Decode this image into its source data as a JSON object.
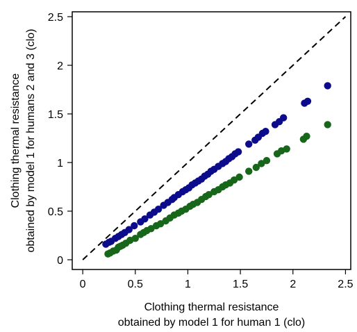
{
  "chart_data": {
    "type": "scatter",
    "xlabel": [
      "Clothing thermal resistance",
      "obtained by model 1 for human 1 (clo)"
    ],
    "ylabel": [
      "Clothing thermal resistance",
      "obtained by model 1 for humans 2 and 3 (clo)"
    ],
    "xlim": [
      -0.1,
      2.55
    ],
    "ylim": [
      -0.1,
      2.55
    ],
    "xticks": [
      "0",
      "0.5",
      "1",
      "1.5",
      "2",
      "2.5"
    ],
    "yticks": [
      "0",
      "0.5",
      "1",
      "1.5",
      "2",
      "2.5"
    ],
    "tick_values": [
      0,
      0.5,
      1,
      1.5,
      2,
      2.5
    ],
    "reference_line": {
      "style": "dashed",
      "color": "#000000",
      "from": [
        0,
        0
      ],
      "to": [
        2.5,
        2.5
      ]
    },
    "grid": false,
    "series": [
      {
        "color": "#0b0b8c",
        "points": [
          [
            0.22,
            0.16
          ],
          [
            0.25,
            0.18
          ],
          [
            0.27,
            0.19
          ],
          [
            0.31,
            0.22
          ],
          [
            0.34,
            0.24
          ],
          [
            0.37,
            0.26
          ],
          [
            0.4,
            0.28
          ],
          [
            0.44,
            0.31
          ],
          [
            0.49,
            0.35
          ],
          [
            0.55,
            0.39
          ],
          [
            0.59,
            0.42
          ],
          [
            0.64,
            0.46
          ],
          [
            0.68,
            0.49
          ],
          [
            0.72,
            0.52
          ],
          [
            0.77,
            0.56
          ],
          [
            0.81,
            0.59
          ],
          [
            0.85,
            0.62
          ],
          [
            0.87,
            0.64
          ],
          [
            0.91,
            0.67
          ],
          [
            0.95,
            0.7
          ],
          [
            0.98,
            0.72
          ],
          [
            1.01,
            0.74
          ],
          [
            1.04,
            0.77
          ],
          [
            1.07,
            0.79
          ],
          [
            1.1,
            0.81
          ],
          [
            1.13,
            0.83
          ],
          [
            1.16,
            0.86
          ],
          [
            1.19,
            0.88
          ],
          [
            1.22,
            0.91
          ],
          [
            1.25,
            0.93
          ],
          [
            1.29,
            0.96
          ],
          [
            1.33,
            0.99
          ],
          [
            1.36,
            1.01
          ],
          [
            1.39,
            1.04
          ],
          [
            1.42,
            1.06
          ],
          [
            1.45,
            1.09
          ],
          [
            1.48,
            1.11
          ],
          [
            1.58,
            1.19
          ],
          [
            1.64,
            1.23
          ],
          [
            1.67,
            1.26
          ],
          [
            1.71,
            1.3
          ],
          [
            1.74,
            1.32
          ],
          [
            1.83,
            1.39
          ],
          [
            1.87,
            1.42
          ],
          [
            1.91,
            1.46
          ],
          [
            2.11,
            1.61
          ],
          [
            2.14,
            1.63
          ],
          [
            2.33,
            1.79
          ]
        ]
      },
      {
        "color": "#17661a",
        "points": [
          [
            0.24,
            0.06
          ],
          [
            0.26,
            0.07
          ],
          [
            0.29,
            0.09
          ],
          [
            0.32,
            0.1
          ],
          [
            0.34,
            0.13
          ],
          [
            0.36,
            0.14
          ],
          [
            0.38,
            0.15
          ],
          [
            0.41,
            0.17
          ],
          [
            0.45,
            0.2
          ],
          [
            0.5,
            0.22
          ],
          [
            0.55,
            0.26
          ],
          [
            0.58,
            0.28
          ],
          [
            0.61,
            0.3
          ],
          [
            0.65,
            0.32
          ],
          [
            0.7,
            0.35
          ],
          [
            0.74,
            0.37
          ],
          [
            0.79,
            0.4
          ],
          [
            0.83,
            0.43
          ],
          [
            0.87,
            0.46
          ],
          [
            0.91,
            0.48
          ],
          [
            0.94,
            0.5
          ],
          [
            0.98,
            0.52
          ],
          [
            1.02,
            0.55
          ],
          [
            1.05,
            0.57
          ],
          [
            1.09,
            0.59
          ],
          [
            1.13,
            0.62
          ],
          [
            1.17,
            0.65
          ],
          [
            1.2,
            0.67
          ],
          [
            1.25,
            0.7
          ],
          [
            1.29,
            0.72
          ],
          [
            1.33,
            0.75
          ],
          [
            1.36,
            0.77
          ],
          [
            1.4,
            0.79
          ],
          [
            1.44,
            0.82
          ],
          [
            1.49,
            0.85
          ],
          [
            1.58,
            0.91
          ],
          [
            1.65,
            0.95
          ],
          [
            1.7,
            0.99
          ],
          [
            1.75,
            1.02
          ],
          [
            1.85,
            1.09
          ],
          [
            1.89,
            1.12
          ],
          [
            1.94,
            1.14
          ],
          [
            2.1,
            1.24
          ],
          [
            2.13,
            1.27
          ],
          [
            2.33,
            1.39
          ]
        ]
      }
    ]
  }
}
